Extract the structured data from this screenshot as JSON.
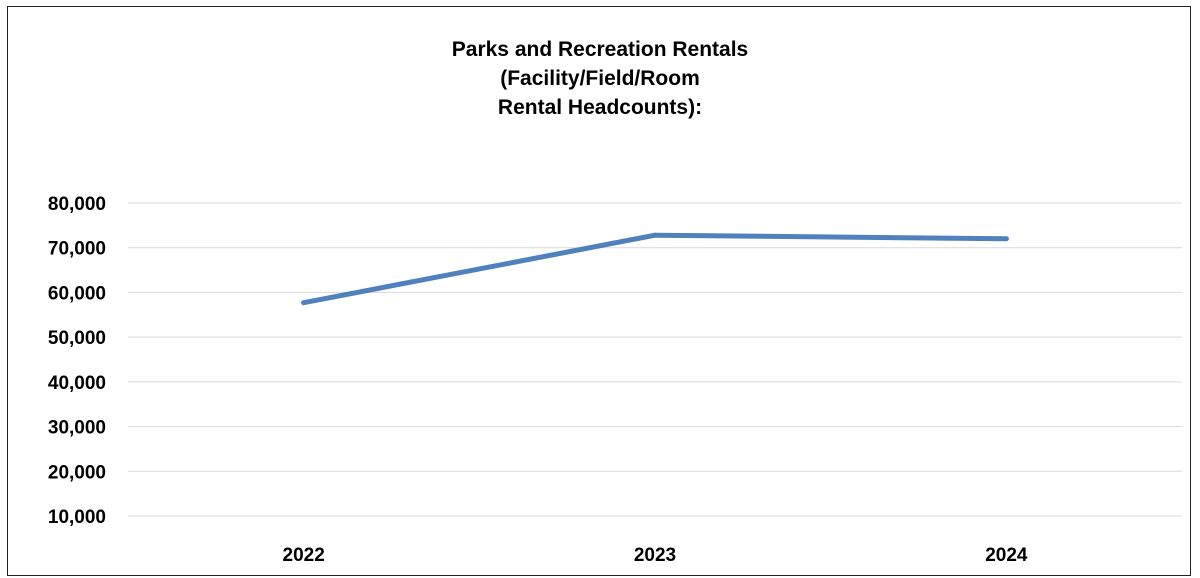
{
  "chart_data": {
    "type": "line",
    "title_lines": [
      "Parks and Recreation Rentals",
      "(Facility/Field/Room",
      "Rental Headcounts):"
    ],
    "xlabel": "",
    "ylabel": "",
    "categories": [
      "2022",
      "2023",
      "2024"
    ],
    "series": [
      {
        "values": [
          57700,
          72800,
          72000
        ],
        "color": "#4F81BD"
      }
    ],
    "ylim": [
      10000,
      80000
    ],
    "y_ticks": [
      80000,
      70000,
      60000,
      50000,
      40000,
      30000,
      20000,
      10000
    ],
    "y_tick_labels": [
      "80,000",
      "70,000",
      "60,000",
      "50,000",
      "40,000",
      "30,000",
      "20,000",
      "10,000"
    ],
    "grid": true,
    "gridline_color": "#d9d9d9",
    "legend": "none"
  }
}
